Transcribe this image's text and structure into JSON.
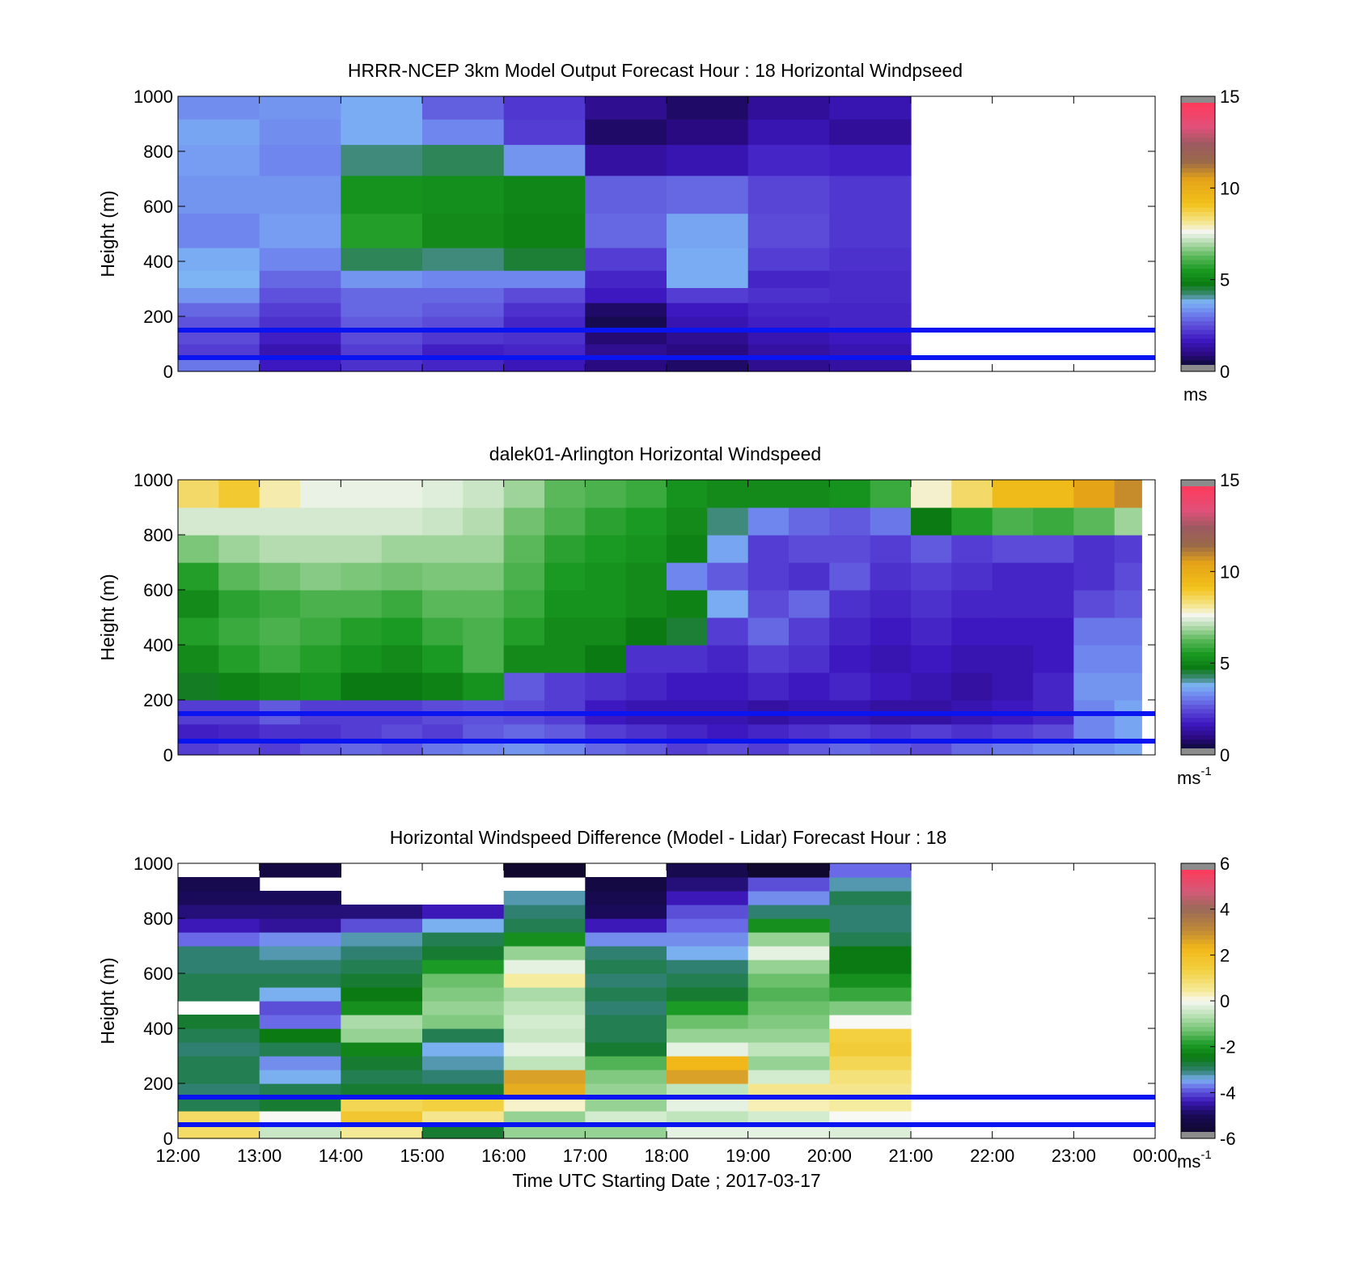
{
  "figure": {
    "x_axis": {
      "label": "Time UTC  Starting Date ; 2017-03-17",
      "ticks": [
        "12:00",
        "13:00",
        "14:00",
        "15:00",
        "16:00",
        "17:00",
        "18:00",
        "19:00",
        "20:00",
        "21:00",
        "22:00",
        "23:00",
        "00:00"
      ]
    }
  },
  "chart_data": [
    {
      "type": "heatmap",
      "title": "HRRR-NCEP 3km Model Output   Forecast Hour : 18 Horizontal Windpseed",
      "ylabel": "Height (m)",
      "ylim": [
        0,
        1000
      ],
      "yticks": [
        "0",
        "200",
        "400",
        "600",
        "800",
        "1000"
      ],
      "xlim": [
        "12:00",
        "00:00"
      ],
      "data_end": "21:00",
      "value_units": "m/s",
      "colorbar": {
        "range": [
          0,
          15
        ],
        "ticks": [
          "0",
          "5",
          "10",
          "15"
        ],
        "unit": "ms"
      },
      "reference_lines_m": [
        50,
        150
      ],
      "heights_m": [
        25,
        75,
        125,
        175,
        225,
        275,
        335,
        400,
        500,
        650,
        775,
        875,
        960
      ],
      "hours": [
        "12:00",
        "13:00",
        "14:00",
        "15:00",
        "16:00",
        "17:00",
        "18:00",
        "19:00",
        "20:00"
      ],
      "values": [
        [
          2.8,
          2.0,
          2.2,
          2.3,
          2.6,
          3.2,
          3.6,
          3.5,
          3.0,
          3.2,
          3.3,
          3.4,
          3.1
        ],
        [
          1.4,
          1.2,
          1.5,
          1.8,
          2.0,
          2.3,
          2.6,
          3.0,
          3.3,
          3.2,
          3.0,
          3.1,
          3.2
        ],
        [
          1.8,
          2.0,
          2.2,
          2.4,
          2.6,
          2.6,
          3.2,
          4.2,
          5.5,
          5.2,
          4.0,
          3.5,
          3.5
        ],
        [
          1.6,
          1.5,
          1.9,
          2.2,
          2.4,
          2.6,
          3.0,
          4.0,
          5.0,
          5.1,
          4.2,
          3.0,
          2.5
        ],
        [
          1.3,
          1.6,
          1.8,
          1.6,
          1.8,
          2.2,
          3.0,
          4.4,
          4.8,
          4.9,
          3.2,
          2.0,
          1.9
        ],
        [
          0.6,
          0.8,
          0.5,
          0.2,
          0.4,
          1.4,
          1.6,
          2.0,
          2.6,
          2.5,
          1.0,
          0.4,
          0.8
        ],
        [
          0.4,
          0.6,
          0.8,
          1.2,
          1.4,
          2.0,
          3.5,
          3.5,
          3.4,
          2.6,
          1.2,
          0.6,
          0.4
        ],
        [
          0.8,
          1.0,
          1.2,
          1.5,
          1.6,
          1.8,
          1.6,
          2.0,
          2.2,
          2.1,
          1.6,
          1.2,
          0.9
        ],
        [
          1.0,
          1.2,
          1.4,
          1.6,
          1.6,
          1.7,
          1.7,
          1.8,
          1.9,
          1.9,
          1.5,
          0.9,
          1.2
        ]
      ]
    },
    {
      "type": "heatmap",
      "title": "dalek01-Arlington  Horizontal Windspeed",
      "ylabel": "Height (m)",
      "ylim": [
        0,
        1000
      ],
      "yticks": [
        "0",
        "200",
        "400",
        "600",
        "800",
        "1000"
      ],
      "xlim": [
        "12:00",
        "00:00"
      ],
      "data_end": "23:50",
      "value_units": "m/s",
      "colorbar": {
        "range": [
          0,
          15
        ],
        "ticks": [
          "0",
          "5",
          "10",
          "15"
        ],
        "unit": "ms",
        "unit_exponent": "-1"
      },
      "reference_lines_m": [
        50,
        150
      ],
      "heights_m": [
        25,
        75,
        150,
        250,
        350,
        450,
        550,
        650,
        750,
        850,
        950
      ],
      "times": [
        "12:00",
        "12:30",
        "13:00",
        "13:30",
        "14:00",
        "14:30",
        "15:00",
        "15:30",
        "16:00",
        "16:30",
        "17:00",
        "17:30",
        "18:00",
        "18:30",
        "19:00",
        "19:30",
        "20:00",
        "20:30",
        "21:00",
        "21:30",
        "22:00",
        "22:30",
        "23:00",
        "23:30"
      ],
      "values": [
        [
          2.0,
          1.5,
          2.0,
          4.5,
          5.0,
          5.5,
          5.0,
          5.5,
          6.5,
          7.3,
          8.5
        ],
        [
          2.2,
          1.6,
          2.0,
          4.8,
          5.5,
          5.8,
          5.6,
          6.2,
          6.8,
          7.3,
          9.0
        ],
        [
          2.0,
          1.8,
          2.4,
          5.0,
          5.8,
          6.0,
          5.8,
          6.4,
          7.0,
          7.3,
          8.0
        ],
        [
          2.4,
          1.8,
          2.0,
          5.2,
          5.5,
          5.8,
          6.0,
          6.6,
          7.0,
          7.3,
          7.5
        ],
        [
          2.6,
          2.0,
          2.0,
          4.6,
          5.2,
          5.5,
          6.0,
          6.5,
          7.0,
          7.3,
          7.5
        ],
        [
          2.4,
          2.2,
          2.0,
          4.6,
          5.0,
          5.4,
          5.8,
          6.4,
          6.8,
          7.3,
          7.5
        ],
        [
          2.8,
          2.0,
          2.2,
          4.8,
          5.4,
          5.8,
          6.2,
          6.5,
          6.8,
          7.2,
          7.4
        ],
        [
          3.0,
          2.4,
          2.3,
          5.2,
          6.0,
          6.0,
          6.2,
          6.5,
          6.8,
          7.0,
          7.2
        ],
        [
          3.2,
          2.6,
          2.2,
          2.4,
          5.0,
          5.5,
          5.8,
          6.0,
          6.2,
          6.4,
          6.8
        ],
        [
          3.0,
          2.4,
          2.0,
          2.0,
          5.0,
          5.0,
          5.2,
          5.4,
          5.6,
          6.0,
          6.2
        ],
        [
          2.6,
          2.0,
          1.4,
          1.8,
          4.6,
          5.0,
          5.2,
          5.2,
          5.4,
          5.6,
          6.0
        ],
        [
          2.4,
          1.8,
          1.2,
          1.6,
          1.8,
          4.6,
          5.0,
          5.0,
          5.2,
          5.4,
          5.8
        ],
        [
          2.0,
          1.6,
          1.2,
          1.4,
          1.8,
          4.4,
          4.8,
          3.0,
          4.8,
          5.0,
          5.2
        ],
        [
          2.2,
          1.4,
          1.2,
          1.4,
          1.6,
          2.0,
          3.5,
          2.4,
          3.4,
          4.0,
          5.0
        ],
        [
          2.0,
          1.6,
          1.0,
          1.6,
          2.0,
          2.6,
          2.2,
          2.0,
          2.0,
          3.0,
          5.0
        ],
        [
          2.4,
          1.8,
          1.2,
          1.4,
          1.8,
          2.0,
          2.6,
          1.8,
          2.2,
          2.6,
          5.0
        ],
        [
          2.6,
          2.0,
          1.2,
          1.6,
          1.4,
          1.6,
          1.8,
          2.4,
          2.2,
          2.4,
          5.2
        ],
        [
          2.4,
          1.8,
          1.0,
          1.4,
          1.2,
          1.4,
          1.6,
          1.8,
          2.0,
          2.8,
          5.8
        ],
        [
          2.2,
          2.0,
          1.0,
          1.2,
          1.4,
          1.6,
          1.8,
          2.0,
          2.4,
          4.6,
          7.8
        ],
        [
          2.6,
          1.8,
          1.2,
          1.0,
          1.2,
          1.4,
          1.6,
          1.8,
          2.0,
          5.5,
          8.5
        ],
        [
          2.8,
          2.0,
          1.4,
          1.2,
          1.2,
          1.4,
          1.6,
          1.6,
          2.2,
          6.0,
          9.5
        ],
        [
          3.0,
          2.2,
          1.6,
          1.6,
          1.4,
          1.4,
          1.6,
          1.6,
          2.2,
          5.8,
          9.5
        ],
        [
          3.2,
          3.0,
          3.0,
          3.2,
          3.0,
          2.8,
          2.2,
          1.8,
          1.8,
          6.2,
          10.5
        ],
        [
          3.4,
          3.4,
          3.4,
          3.2,
          3.0,
          2.8,
          2.4,
          2.2,
          2.0,
          6.8,
          11.0
        ]
      ]
    },
    {
      "type": "heatmap",
      "title": "Horizontal Windspeed Difference (Model - Lidar) Forecast Hour : 18",
      "ylabel": "Height (m)",
      "xlabel": "Time UTC  Starting Date ; 2017-03-17",
      "ylim": [
        0,
        1000
      ],
      "yticks": [
        "0",
        "200",
        "400",
        "600",
        "800",
        "1000"
      ],
      "xlim": [
        "12:00",
        "00:00"
      ],
      "data_end": "21:00",
      "value_units": "m/s",
      "colorbar": {
        "range": [
          -6,
          6
        ],
        "ticks": [
          "-6",
          "-4",
          "-2",
          "0",
          "2",
          "4",
          "6"
        ],
        "unit": "ms",
        "unit_exponent": "-1"
      },
      "reference_lines_m": [
        50,
        150
      ],
      "heights_m": [
        25,
        75,
        125,
        175,
        225,
        275,
        325,
        375,
        425,
        475,
        525,
        575,
        625,
        675,
        725,
        775,
        825,
        875,
        925,
        975
      ],
      "hours": [
        "12:00",
        "13:00",
        "14:00",
        "15:00",
        "16:00",
        "17:00",
        "18:00",
        "19:00",
        "20:00"
      ],
      "values": [
        [
          1.0,
          1.0,
          -3.0,
          -3.2,
          -3.0,
          -3.0,
          -3.2,
          -3.0,
          -2.8,
          null,
          -3.0,
          -3.0,
          -3.2,
          -3.2,
          -4.0,
          -4.6,
          -5.0,
          -5.2,
          -5.4,
          null
        ],
        [
          -0.5,
          0.0,
          -2.8,
          -3.0,
          -3.6,
          -3.8,
          -3.0,
          -2.6,
          -4.0,
          -4.2,
          -3.6,
          -3.0,
          -3.2,
          -3.4,
          -3.8,
          -4.8,
          -5.0,
          -5.2,
          null,
          -5.6
        ],
        [
          0.5,
          1.8,
          1.2,
          -2.8,
          -3.0,
          -2.8,
          -2.4,
          -1.0,
          -0.8,
          -2.2,
          -2.6,
          -2.8,
          -3.0,
          -3.2,
          -3.4,
          -4.2,
          -5.0,
          null,
          null,
          null
        ],
        [
          -2.8,
          0.6,
          1.4,
          -2.8,
          -3.2,
          -3.4,
          -3.6,
          -3.0,
          -1.2,
          -1.0,
          -1.2,
          -1.4,
          -2.0,
          -2.8,
          -3.0,
          -3.6,
          -4.6,
          null,
          null,
          null
        ],
        [
          -1.0,
          -1.0,
          0.2,
          2.6,
          2.8,
          -0.6,
          -0.2,
          -0.5,
          -0.4,
          -0.6,
          -0.8,
          0.4,
          -0.2,
          -1.0,
          -2.2,
          -3.0,
          -3.2,
          -3.4,
          null,
          -6.0
        ],
        [
          -1.0,
          -0.4,
          -1.0,
          -1.0,
          -1.2,
          -1.6,
          -2.8,
          -3.0,
          -3.0,
          -3.2,
          -3.0,
          -3.2,
          -3.0,
          -3.2,
          -3.8,
          -4.6,
          -5.2,
          -5.4,
          -5.6,
          null
        ],
        [
          -0.2,
          -0.6,
          -0.2,
          -0.6,
          2.8,
          2.4,
          -0.2,
          -1.0,
          -1.4,
          -2.0,
          -2.8,
          -3.0,
          -3.2,
          -3.6,
          -3.8,
          -4.0,
          -4.2,
          -4.6,
          -5.0,
          -5.4
        ],
        [
          -0.2,
          -0.4,
          0.3,
          0.6,
          -0.4,
          -1.0,
          -0.6,
          -1.0,
          -1.2,
          -1.4,
          -1.6,
          -1.4,
          -1.0,
          -0.2,
          -1.0,
          -2.2,
          -3.2,
          -3.8,
          -4.2,
          -6.0
        ],
        [
          -0.3,
          0.0,
          0.4,
          0.6,
          0.8,
          1.2,
          1.6,
          1.4,
          0.0,
          -1.2,
          -1.8,
          -2.2,
          -2.6,
          -2.6,
          -3.0,
          -3.2,
          -3.2,
          -3.0,
          -3.4,
          -4.0
        ]
      ]
    }
  ]
}
